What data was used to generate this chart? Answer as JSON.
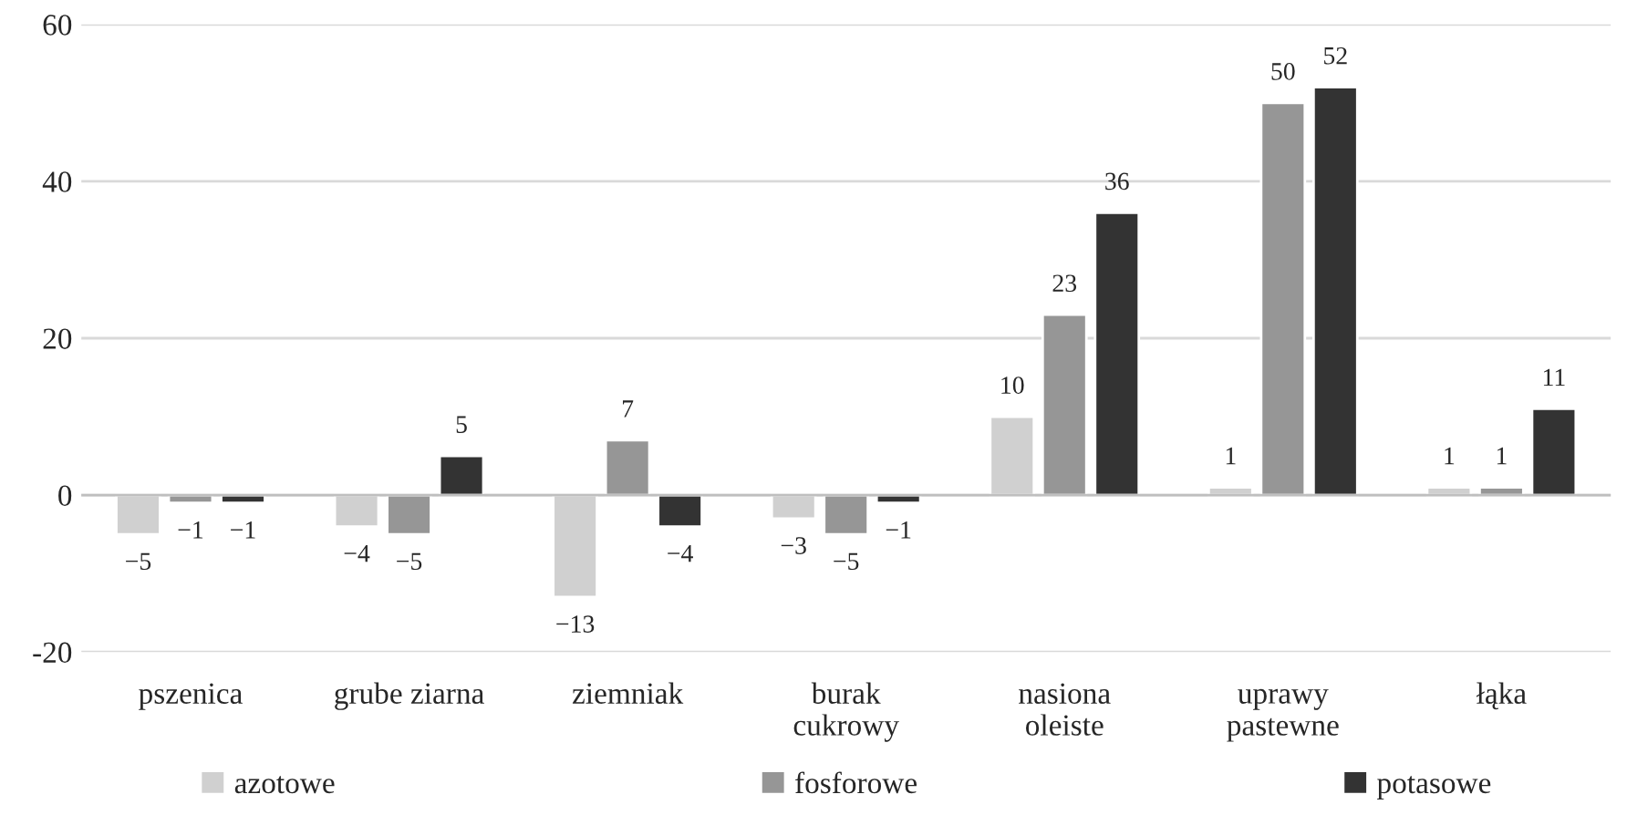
{
  "chart_data": {
    "type": "bar",
    "categories": [
      "pszenica",
      "grube ziarna",
      "ziemniak",
      "burak\ncukrowy",
      "nasiona\noleiste",
      "uprawy\npastewne",
      "łąka"
    ],
    "series": [
      {
        "name": "azotowe",
        "color": "#d0d0d0",
        "values": [
          -5,
          -4,
          -13,
          -3,
          10,
          1,
          1
        ],
        "value_labels": [
          "−5",
          "−4",
          "−13",
          "−3",
          "10",
          "1",
          "1"
        ]
      },
      {
        "name": "fosforowe",
        "color": "#969696",
        "values": [
          -1,
          -5,
          7,
          -5,
          23,
          50,
          1
        ],
        "value_labels": [
          "−1",
          "−5",
          "7",
          "−5",
          "23",
          "50",
          "1"
        ]
      },
      {
        "name": "potasowe",
        "color": "#333333",
        "values": [
          -1,
          5,
          -4,
          -1,
          36,
          52,
          11
        ],
        "value_labels": [
          "−1",
          "5",
          "−4",
          "−1",
          "36",
          "52",
          "11"
        ]
      }
    ],
    "ylim": [
      -20,
      60
    ],
    "yticks": [
      {
        "value": -20,
        "label": "-20"
      },
      0,
      20,
      40,
      60
    ],
    "grid": "y",
    "legend": "bottom"
  }
}
